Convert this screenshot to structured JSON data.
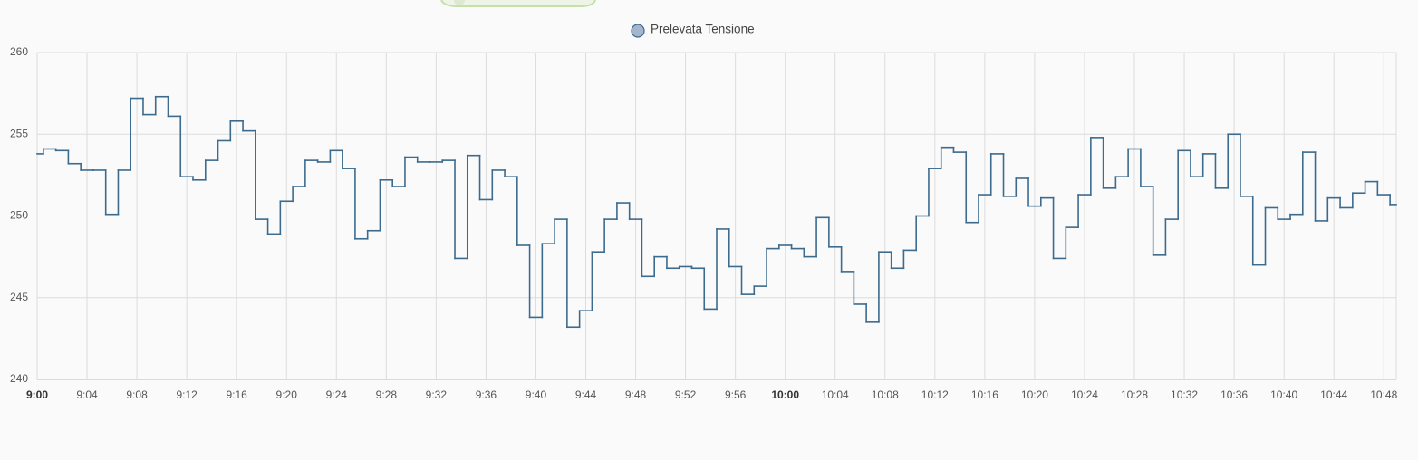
{
  "chart_data": {
    "type": "step",
    "x": [
      "9:00",
      "9:01",
      "9:02",
      "9:03",
      "9:04",
      "9:05",
      "9:06",
      "9:07",
      "9:08",
      "9:09",
      "9:10",
      "9:11",
      "9:12",
      "9:13",
      "9:14",
      "9:15",
      "9:16",
      "9:17",
      "9:18",
      "9:19",
      "9:20",
      "9:21",
      "9:22",
      "9:23",
      "9:24",
      "9:25",
      "9:26",
      "9:27",
      "9:28",
      "9:29",
      "9:30",
      "9:31",
      "9:32",
      "9:33",
      "9:34",
      "9:35",
      "9:36",
      "9:37",
      "9:38",
      "9:39",
      "9:40",
      "9:41",
      "9:42",
      "9:43",
      "9:44",
      "9:45",
      "9:46",
      "9:47",
      "9:48",
      "9:49",
      "9:50",
      "9:51",
      "9:52",
      "9:53",
      "9:54",
      "9:55",
      "9:56",
      "9:57",
      "9:58",
      "9:59",
      "10:00",
      "10:01",
      "10:02",
      "10:03",
      "10:04",
      "10:05",
      "10:06",
      "10:07",
      "10:08",
      "10:09",
      "10:10",
      "10:11",
      "10:12",
      "10:13",
      "10:14",
      "10:15",
      "10:16",
      "10:17",
      "10:18",
      "10:19",
      "10:20",
      "10:21",
      "10:22",
      "10:23",
      "10:24",
      "10:25",
      "10:26",
      "10:27",
      "10:28",
      "10:29",
      "10:30",
      "10:31",
      "10:32",
      "10:33",
      "10:34",
      "10:35",
      "10:36",
      "10:37",
      "10:38",
      "10:39",
      "10:40",
      "10:41",
      "10:42",
      "10:43",
      "10:44",
      "10:45",
      "10:46",
      "10:47",
      "10:48",
      "10:49"
    ],
    "series": [
      {
        "name": "Prelevata Tensione",
        "color": "#3d6b8e",
        "marker_fill": "#a4b5cc",
        "values": [
          253.8,
          254.1,
          254.0,
          253.2,
          252.8,
          252.8,
          250.1,
          252.8,
          257.2,
          256.2,
          257.3,
          256.1,
          252.4,
          252.2,
          253.4,
          254.6,
          255.8,
          255.2,
          249.8,
          248.9,
          250.9,
          251.8,
          253.4,
          253.3,
          254.0,
          252.9,
          248.6,
          249.1,
          252.2,
          251.8,
          253.6,
          253.3,
          253.3,
          253.4,
          247.4,
          253.7,
          251.0,
          252.8,
          252.4,
          248.2,
          243.8,
          248.3,
          249.8,
          243.2,
          244.2,
          247.8,
          249.8,
          250.8,
          249.8,
          246.3,
          247.5,
          246.8,
          246.9,
          246.8,
          244.3,
          249.2,
          246.9,
          245.2,
          245.7,
          248.0,
          248.2,
          248.0,
          247.5,
          249.9,
          248.1,
          246.6,
          244.6,
          243.5,
          247.8,
          246.8,
          247.9,
          250.0,
          252.9,
          254.2,
          253.9,
          249.6,
          251.3,
          253.8,
          251.2,
          252.3,
          250.6,
          251.1,
          247.4,
          249.3,
          251.3,
          254.8,
          251.7,
          252.4,
          254.1,
          251.8,
          247.6,
          249.8,
          254.0,
          252.4,
          253.8,
          251.7,
          255.0,
          251.2,
          247.0,
          250.5,
          249.8,
          250.1,
          253.9,
          249.7,
          251.1,
          250.5,
          251.4,
          252.1,
          251.3,
          250.7
        ]
      }
    ],
    "xlim": [
      "9:00",
      "10:49"
    ],
    "xticks": [
      "9:00",
      "9:04",
      "9:08",
      "9:12",
      "9:16",
      "9:20",
      "9:24",
      "9:28",
      "9:32",
      "9:36",
      "9:40",
      "9:44",
      "9:48",
      "9:52",
      "9:56",
      "10:00",
      "10:04",
      "10:08",
      "10:12",
      "10:16",
      "10:20",
      "10:24",
      "10:28",
      "10:32",
      "10:36",
      "10:40",
      "10:44",
      "10:48"
    ],
    "ylim": [
      240,
      260
    ],
    "yticks": [
      240,
      245,
      250,
      255,
      260
    ],
    "grid": true,
    "legend": "top"
  }
}
